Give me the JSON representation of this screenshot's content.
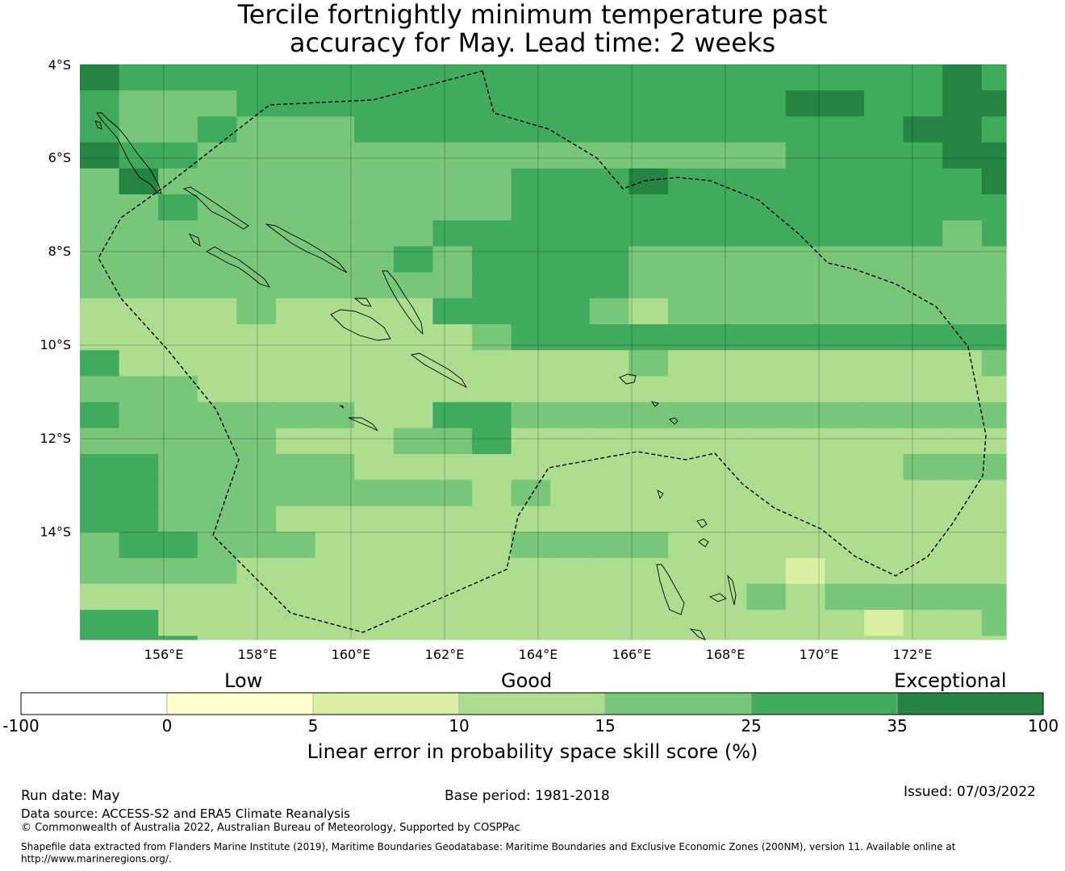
{
  "title": {
    "line1": "Tercile fortnightly minimum temperature past",
    "line2": "accuracy for May. Lead time: 2 weeks"
  },
  "map": {
    "region": "Solomon Islands EEZ",
    "lat_labels": [
      "4°S",
      "6°S",
      "8°S",
      "10°S",
      "12°S",
      "14°S"
    ],
    "lon_labels": [
      "156°E",
      "158°E",
      "160°E",
      "162°E",
      "164°E",
      "166°E",
      "168°E",
      "170°E",
      "172°E"
    ],
    "grid_lines": true,
    "boundary_style": "dashed",
    "lon_range": [
      154.2,
      174.0
    ],
    "lat_range": [
      -16.3,
      -3.9
    ],
    "skill_grid_rows": [
      "6555555555555555555555655566",
      "5444555555555555556655666656",
      "5445444555555555555556656665",
      "6554444444444444445555665666",
      "4644444444455565555555565566",
      "4454444444455555555555555666",
      "4444444445555555555555455555",
      "4444444454555544444444444555",
      "4444444444555544444444445544",
      "3333433335555434444444445444",
      "3333333333455555555555555444",
      "5333333333333343333333344454",
      "4443333333333333333333333354",
      "5444444335544444444444444444",
      "4444433344533333333333333344",
      "5544444333333333333334444444",
      "5544444444343333333333333444",
      "5544433333333333333333333444",
      "4554443333344443333333333344",
      "4444333333333333332333333333",
      "3333333333333333343444444444",
      "5533333333333333333323343333",
      "5553333333333333333333333333",
      "5553333333333333333333333333",
      "5553333333333333333333333333",
      "4444333333333333333333333333"
    ],
    "islands": [
      "Bougainville",
      "Choiseul",
      "Santa Isabel",
      "New Georgia",
      "Malaita",
      "Guadalcanal",
      "Makira",
      "Rennell",
      "Santa Cruz Islands",
      "Vanuatu"
    ]
  },
  "colorbar": {
    "category_low": "Low",
    "category_good": "Good",
    "category_exceptional": "Exceptional",
    "ticks": [
      "-100",
      "0",
      "5",
      "10",
      "15",
      "25",
      "35",
      "100"
    ],
    "colors": [
      "#ffffff",
      "#ffffcc",
      "#d9f0a3",
      "#addd8e",
      "#78c679",
      "#41ab5d",
      "#238443"
    ],
    "caption": "Linear error in probability space skill score (%)"
  },
  "footer": {
    "run_date": "Run date: May",
    "base_period": "Base period: 1981-2018",
    "issued": "Issued: 07/03/2022",
    "data_source": "Data source: ACCESS-S2 and ERA5 Climate Reanalysis",
    "copyright": "© Commonwealth of Australia 2022, Australian Bureau of Meteorology, Supported by COSPPac",
    "shapefile": "Shapefile data extracted from Flanders Marine Institute (2019), Maritime Boundaries Geodatabase: Maritime Boundaries and Exclusive Economic Zones (200NM), version 11. Available online at http://www.marineregions.org/."
  }
}
